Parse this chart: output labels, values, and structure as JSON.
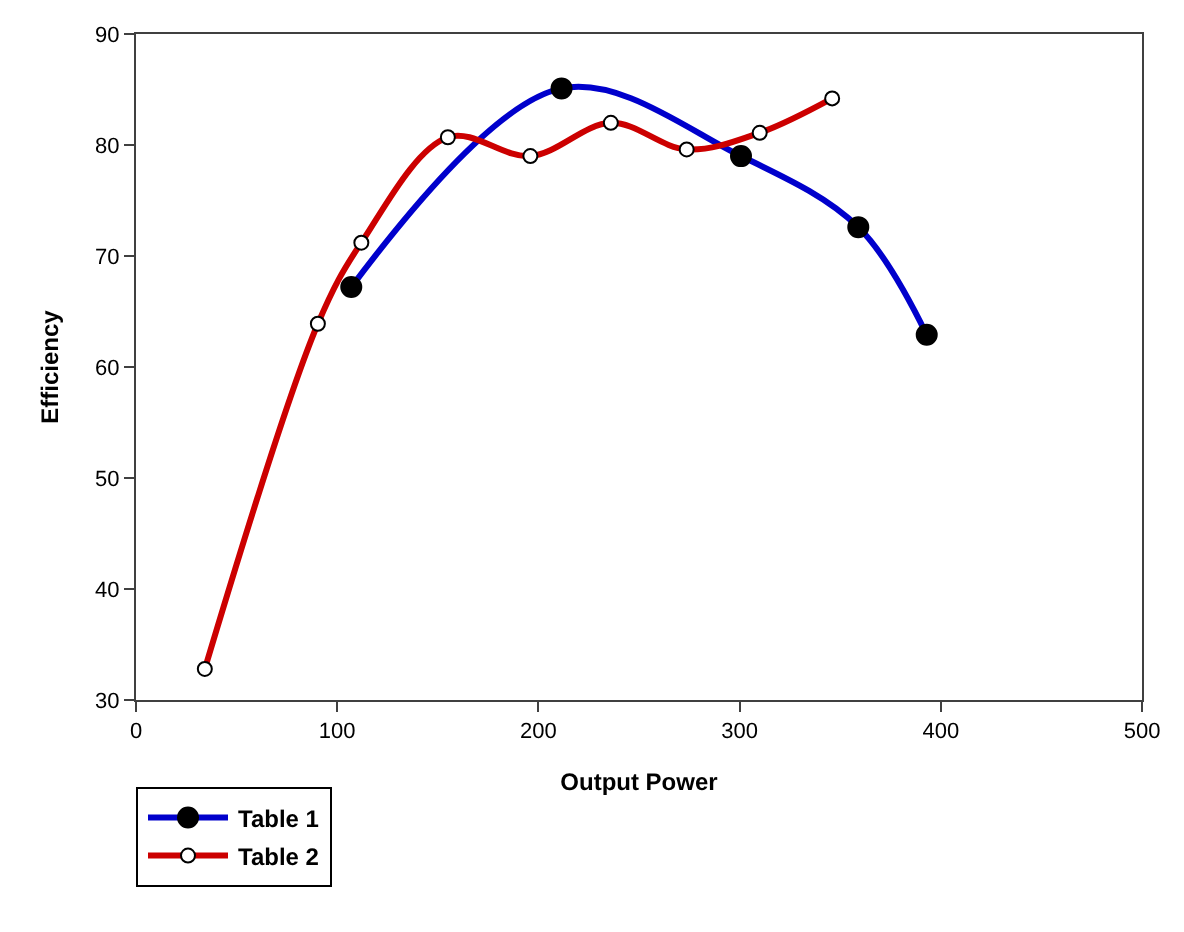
{
  "chart_data": {
    "type": "line",
    "xlabel": "Output Power",
    "ylabel": "Efficiency",
    "xlim": [
      0,
      500
    ],
    "ylim": [
      30,
      90
    ],
    "xticks": [
      0,
      100,
      200,
      300,
      400,
      500
    ],
    "yticks": [
      30,
      40,
      50,
      60,
      70,
      80,
      90
    ],
    "legend": "bottom left",
    "line_style": "solid",
    "series": [
      {
        "name": "Table 1",
        "color": "#0000cc",
        "marker": "circle",
        "x": [
          107,
          211.5,
          300.7,
          359,
          393
        ],
        "values": [
          67.2,
          85.1,
          79,
          72.6,
          62.9
        ]
      },
      {
        "name": "Table 2",
        "color": "#cc0000",
        "marker": "circle-open",
        "x": [
          34.2,
          90.4,
          112,
          155,
          196,
          236,
          273.7,
          310,
          346
        ],
        "values": [
          32.8,
          63.9,
          71.2,
          80.7,
          79,
          82,
          79.6,
          81.1,
          84.2
        ]
      }
    ]
  }
}
